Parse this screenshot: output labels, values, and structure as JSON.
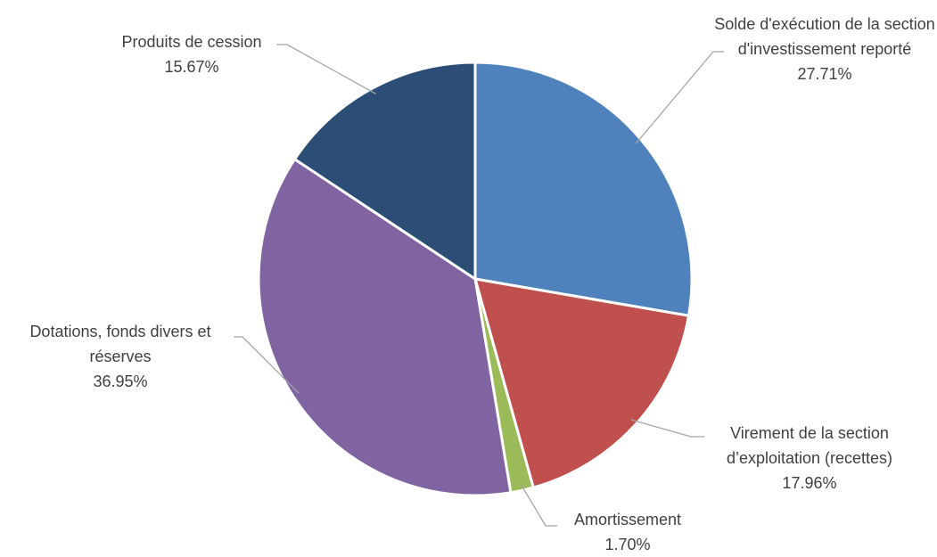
{
  "chart_data": {
    "type": "pie",
    "categories": [
      "Solde d'exécution de la section d'investissement reporté",
      "Virement de la section d’exploitation (recettes)",
      "Amortissement",
      "Dotations, fonds divers et réserves",
      "Produits de cession"
    ],
    "values": [
      27.71,
      17.96,
      1.7,
      36.95,
      15.67
    ],
    "value_labels": [
      "27.71%",
      "17.96%",
      "1.70%",
      "36.95%",
      "15.67%"
    ],
    "colors": [
      "#4f81bd",
      "#c0504d",
      "#9bbb59",
      "#8064a2",
      "#2c4d75"
    ]
  }
}
